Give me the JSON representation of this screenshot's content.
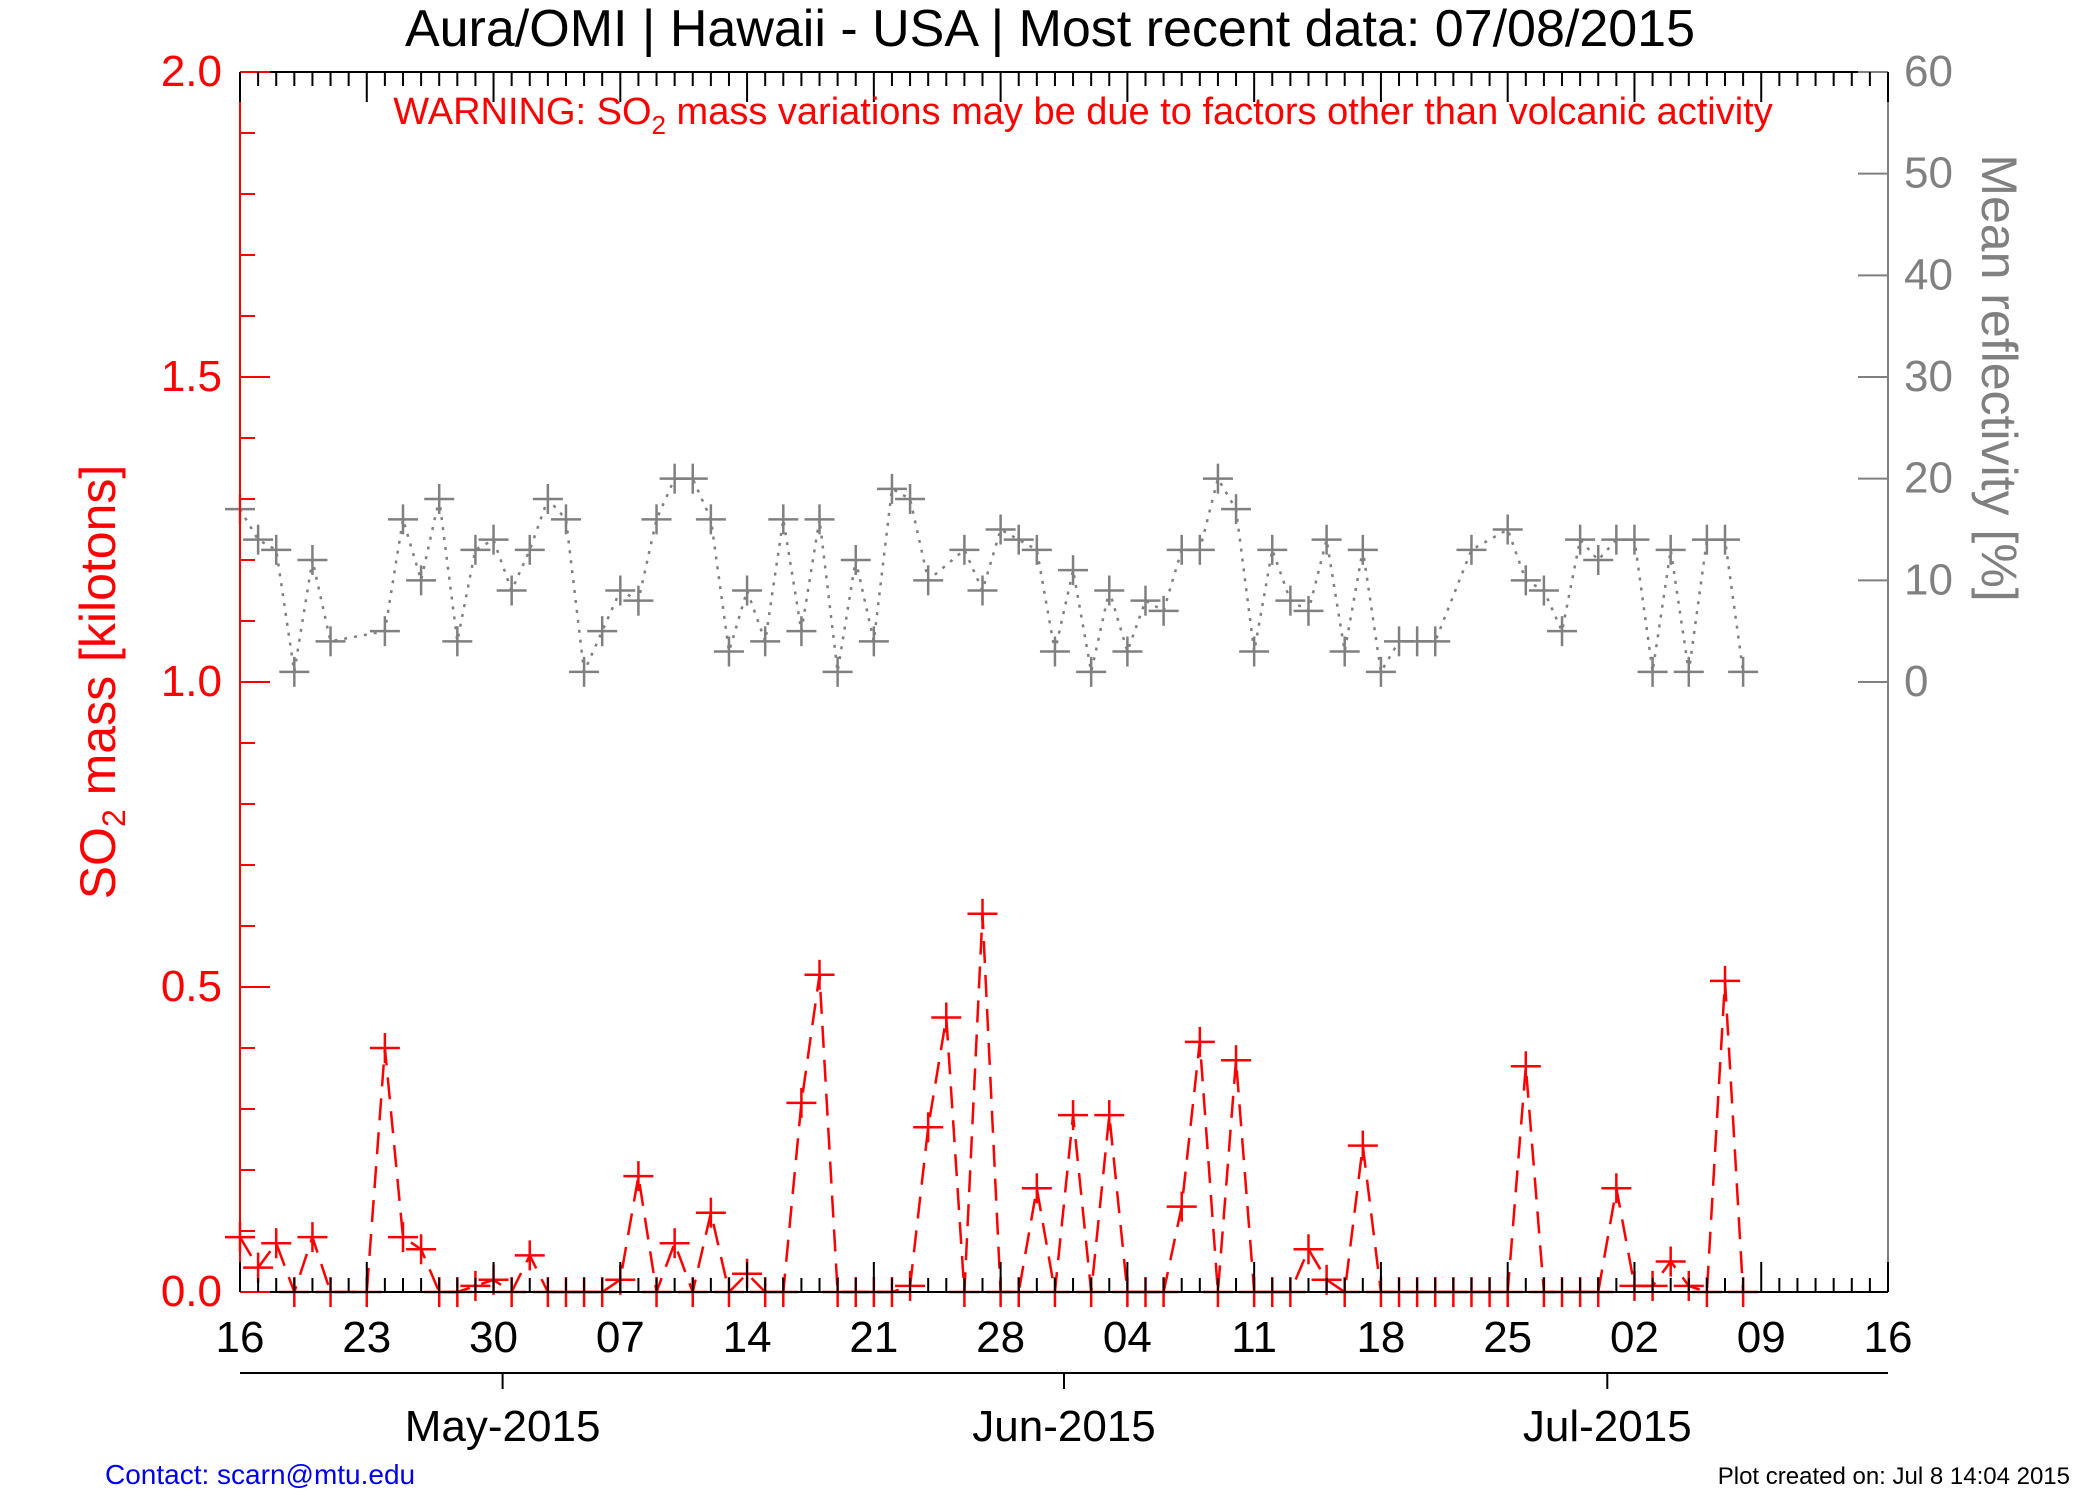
{
  "chart_data": {
    "type": "line",
    "title": "Aura/OMI | Hawaii - USA | Most recent data: 07/08/2015",
    "warning": {
      "prefix": "WARNING: SO",
      "subscript": "2",
      "suffix": " mass variations may be due to factors other than volcanic activity"
    },
    "left_axis": {
      "label_prefix": "SO",
      "label_subscript": "2",
      "label_suffix": " mass [kilotons]",
      "ylim": [
        0.0,
        2.0
      ],
      "ticks": [
        "0.0",
        "0.5",
        "1.0",
        "1.5",
        "2.0"
      ],
      "color": "#ff0000"
    },
    "right_axis": {
      "label": "Mean reflectivity [%]",
      "ylim": [
        -60,
        60
      ],
      "ticks": [
        "0",
        "10",
        "20",
        "30",
        "40",
        "50",
        "60"
      ],
      "color": "#808080"
    },
    "x_axis": {
      "day_start": 0,
      "day_end": 91,
      "day_tick_labels": [
        "16",
        "23",
        "30",
        "07",
        "14",
        "21",
        "28",
        "04",
        "11",
        "18",
        "25",
        "02",
        "09",
        "16"
      ],
      "month_labels": [
        "May-2015",
        "Jun-2015",
        "Jul-2015"
      ],
      "month_tick_days": [
        14.5,
        45.5,
        75.5
      ]
    },
    "series": [
      {
        "name": "SO2 mass",
        "color": "#ff0000",
        "linestyle": "dashed",
        "x": [
          0,
          1,
          2,
          3,
          4,
          5,
          7,
          8,
          9,
          10,
          11,
          12,
          13,
          14,
          15,
          16,
          17,
          18,
          19,
          20,
          21,
          22,
          23,
          24,
          25,
          26,
          27,
          28,
          29,
          30,
          31,
          32,
          33,
          34,
          35,
          36,
          37,
          38,
          39,
          40,
          41,
          42,
          43,
          44,
          45,
          46,
          47,
          48,
          49,
          50,
          51,
          52,
          53,
          54,
          55,
          56,
          57,
          58,
          59,
          60,
          61,
          62,
          63,
          64,
          65,
          66,
          67,
          68,
          69,
          70,
          71,
          72,
          73,
          74,
          75,
          76,
          77,
          78,
          79,
          80,
          81,
          82,
          83
        ],
        "values": [
          0.09,
          0.04,
          0.08,
          0.0,
          0.09,
          0.0,
          0.0,
          0.4,
          0.09,
          0.07,
          0.0,
          0.0,
          0.01,
          0.02,
          0.0,
          0.06,
          0.0,
          0.0,
          0.0,
          0.0,
          0.02,
          0.19,
          0.0,
          0.08,
          0.0,
          0.13,
          0.0,
          0.03,
          0.0,
          0.0,
          0.31,
          0.52,
          0.0,
          0.0,
          0.0,
          0.0,
          0.01,
          0.27,
          0.45,
          0.0,
          0.62,
          0.0,
          0.0,
          0.17,
          0.0,
          0.29,
          0.0,
          0.29,
          0.0,
          0.0,
          0.0,
          0.14,
          0.41,
          0.0,
          0.38,
          0.0,
          0.0,
          0.0,
          0.07,
          0.02,
          0.0,
          0.24,
          0.0,
          0.0,
          0.0,
          0.0,
          0.0,
          0.0,
          0.0,
          0.0,
          0.37,
          0.0,
          0.0,
          0.0,
          0.0,
          0.17,
          0.01,
          0.01,
          0.05,
          0.01,
          0.0,
          0.51,
          0.0
        ]
      },
      {
        "name": "Mean reflectivity",
        "color": "#808080",
        "linestyle": "dotted",
        "x": [
          0,
          1,
          2,
          3,
          4,
          5,
          8,
          9,
          10,
          11,
          12,
          13,
          14,
          15,
          16,
          17,
          18,
          19,
          20,
          21,
          22,
          23,
          24,
          25,
          26,
          27,
          28,
          29,
          30,
          31,
          32,
          33,
          34,
          35,
          36,
          37,
          38,
          40,
          41,
          42,
          43,
          44,
          45,
          46,
          47,
          48,
          49,
          50,
          51,
          52,
          53,
          54,
          55,
          56,
          57,
          58,
          59,
          60,
          61,
          62,
          63,
          64,
          65,
          66,
          68,
          70,
          71,
          72,
          73,
          74,
          75,
          76,
          77,
          78,
          79,
          80,
          81,
          82,
          83
        ],
        "values": [
          17,
          14,
          13,
          1,
          12,
          4,
          5,
          16,
          10,
          18,
          4,
          13,
          14,
          9,
          13,
          18,
          16,
          1,
          5,
          9,
          8,
          16,
          20,
          20,
          16,
          3,
          9,
          4,
          16,
          5,
          16,
          1,
          12,
          4,
          19,
          18,
          10,
          13,
          9,
          15,
          14,
          13,
          3,
          11,
          1,
          9,
          3,
          8,
          7,
          13,
          13,
          20,
          17,
          3,
          13,
          8,
          7,
          14,
          3,
          13,
          1,
          4,
          4,
          4,
          13,
          15,
          10,
          9,
          5,
          14,
          12,
          14,
          14,
          1,
          13,
          1,
          14,
          14,
          1
        ]
      }
    ],
    "footer_contact": "Contact: scarn@mtu.edu",
    "footer_created": "Plot created on: Jul  8 14:04 2015"
  }
}
